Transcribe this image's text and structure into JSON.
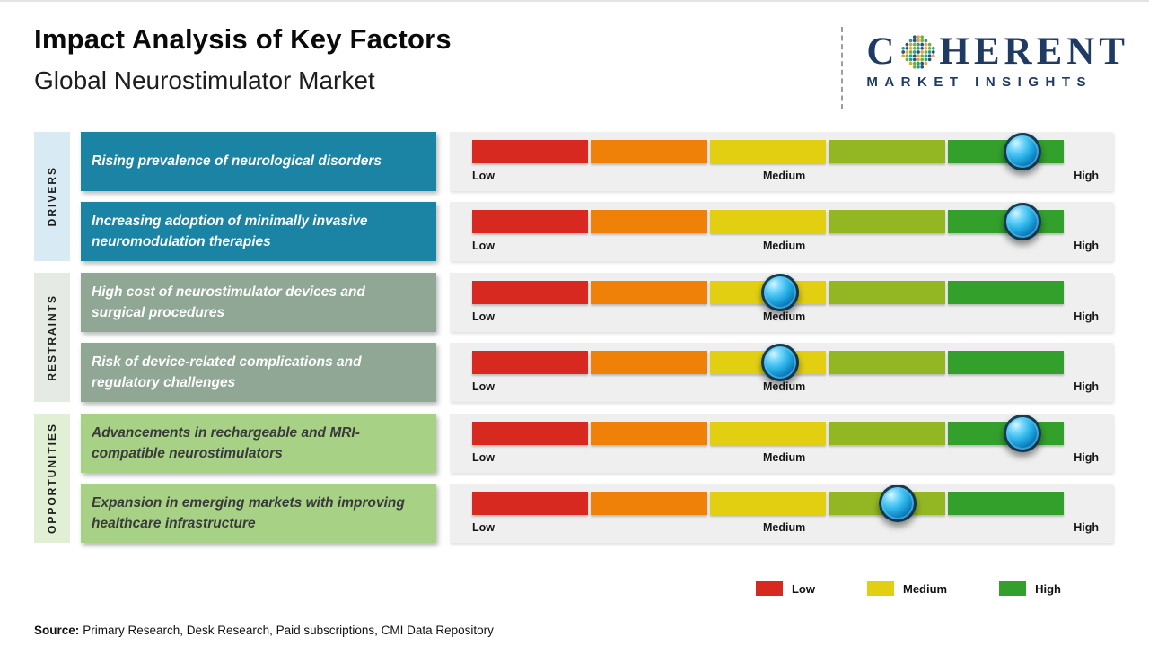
{
  "header": {
    "title": "Impact Analysis of Key Factors",
    "subtitle": "Global Neurostimulator Market"
  },
  "logo": {
    "prefix": "C",
    "suffix": "HERENT",
    "tagline": "MARKET INSIGHTS",
    "navy": "#1f3a63",
    "globe_colors": [
      "#2a9d8f",
      "#76b043",
      "#e8a33d",
      "#27567b"
    ]
  },
  "scale": {
    "labels": {
      "low": "Low",
      "medium": "Medium",
      "high": "High"
    },
    "segment_colors": [
      "#d7291f",
      "#ef8109",
      "#e3cf12",
      "#93b723",
      "#33a02c"
    ],
    "track_bg": "#efefef"
  },
  "groups": [
    {
      "label": "DRIVERS",
      "strip_color": "#d8eaf3",
      "box_color": "#1b84a5",
      "text_color": "#ffffff",
      "rows": [
        {
          "factor": "Rising prevalence of neurological disorders",
          "impact_percent": 93,
          "impact_reading": "High"
        },
        {
          "factor": "Increasing adoption of minimally invasive neuromodulation therapies",
          "impact_percent": 93,
          "impact_reading": "High"
        }
      ]
    },
    {
      "label": "RESTRAINTS",
      "strip_color": "#e5eae4",
      "box_color": "#8fa794",
      "text_color": "#ffffff",
      "rows": [
        {
          "factor": "High cost of neurostimulator devices and surgical procedures",
          "impact_percent": 52,
          "impact_reading": "Medium"
        },
        {
          "factor": "Risk of device-related complications and regulatory challenges",
          "impact_percent": 52,
          "impact_reading": "Medium"
        }
      ]
    },
    {
      "label": "OPPORTUNITIES",
      "strip_color": "#e1efd5",
      "box_color": "#a7d286",
      "text_color": "#3a3a3a",
      "rows": [
        {
          "factor": "Advancements in rechargeable and MRI-compatible neurostimulators",
          "impact_percent": 93,
          "impact_reading": "High"
        },
        {
          "factor": "Expansion in emerging markets with improving healthcare infrastructure",
          "impact_percent": 72,
          "impact_reading": "Medium-High"
        }
      ]
    }
  ],
  "legend": [
    {
      "label": "Low",
      "color": "#d7291f"
    },
    {
      "label": "Medium",
      "color": "#e3cf12"
    },
    {
      "label": "High",
      "color": "#33a02c"
    }
  ],
  "source": {
    "label": "Source:",
    "text": "Primary Research, Desk Research, Paid subscriptions, CMI Data Repository"
  }
}
